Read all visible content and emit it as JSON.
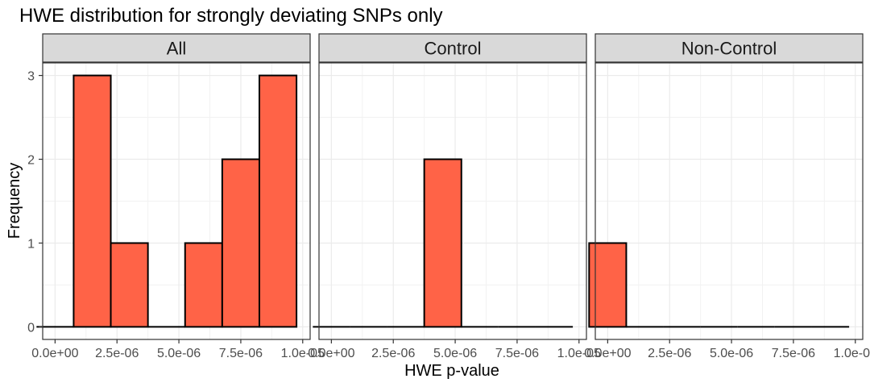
{
  "chart_data": {
    "type": "bar",
    "title": "HWE distribution for strongly deviating SNPs only",
    "xlabel": "HWE p-value",
    "ylabel": "Frequency",
    "x_tick_labels": [
      "0.0e+00",
      "2.5e-06",
      "5.0e-06",
      "7.5e-06",
      "1.0e-05"
    ],
    "x_tick_values": [
      0,
      2.5e-06,
      5e-06,
      7.5e-06,
      1e-05
    ],
    "y_tick_labels": [
      "0",
      "1",
      "2",
      "3"
    ],
    "y_tick_values": [
      0,
      1,
      2,
      3
    ],
    "xlim": [
      -5e-07,
      1.03e-05
    ],
    "ylim": [
      -0.15,
      3.15
    ],
    "bin_width": 1.5e-06,
    "bin_centers": [
      0,
      1.5e-06,
      3e-06,
      4.5e-06,
      6e-06,
      7.5e-06,
      9e-06
    ],
    "fill_color": "#FF6347",
    "outline_color": "#000000",
    "strip_color": "#D9D9D9",
    "grid": true,
    "facets": [
      {
        "label": "All",
        "values": [
          0,
          3,
          1,
          0,
          1,
          2,
          3
        ]
      },
      {
        "label": "Control",
        "values": [
          0,
          0,
          0,
          2,
          0,
          0,
          0
        ]
      },
      {
        "label": "Non-Control",
        "values": [
          1,
          0,
          0,
          0,
          0,
          0,
          0
        ]
      }
    ]
  }
}
